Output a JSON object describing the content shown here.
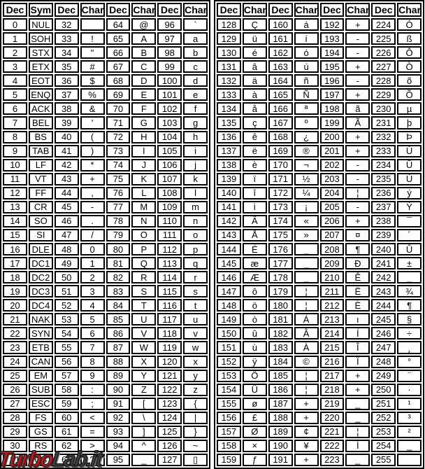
{
  "page": {
    "background": "#ffffff",
    "border_color": "#000000",
    "text_color": "#000000"
  },
  "watermark": {
    "text_turbo": "Turbo",
    "text_lab": "Lab.it",
    "color_turbo": "#c3181a",
    "color_lab": "#3c3c3c"
  },
  "ascii_table": {
    "tables": [
      {
        "name": "ascii-standard-0-127",
        "headers": [
          "Dec",
          "Sym",
          "Dec",
          "Char",
          "Dec",
          "Char",
          "Dec",
          "Char"
        ],
        "rows": [
          [
            "0",
            "NUL",
            "32",
            " ",
            "64",
            "@",
            "96",
            "`"
          ],
          [
            "1",
            "SOH",
            "33",
            "!",
            "65",
            "A",
            "97",
            "a"
          ],
          [
            "2",
            "STX",
            "34",
            "\"",
            "66",
            "B",
            "98",
            "b"
          ],
          [
            "3",
            "ETX",
            "35",
            "#",
            "67",
            "C",
            "99",
            "c"
          ],
          [
            "4",
            "EOT",
            "36",
            "$",
            "68",
            "D",
            "100",
            "d"
          ],
          [
            "5",
            "ENQ",
            "37",
            "%",
            "69",
            "E",
            "101",
            "e"
          ],
          [
            "6",
            "ACK",
            "38",
            "&",
            "70",
            "F",
            "102",
            "f"
          ],
          [
            "7",
            "BEL",
            "39",
            "'",
            "71",
            "G",
            "103",
            "g"
          ],
          [
            "8",
            "BS",
            "40",
            "(",
            "72",
            "H",
            "104",
            "h"
          ],
          [
            "9",
            "TAB",
            "41",
            ")",
            "73",
            "I",
            "105",
            "i"
          ],
          [
            "10",
            "LF",
            "42",
            "*",
            "74",
            "J",
            "106",
            "j"
          ],
          [
            "11",
            "VT",
            "43",
            "+",
            "75",
            "K",
            "107",
            "k"
          ],
          [
            "12",
            "FF",
            "44",
            ",",
            "76",
            "L",
            "108",
            "l"
          ],
          [
            "13",
            "CR",
            "45",
            "-",
            "77",
            "M",
            "109",
            "m"
          ],
          [
            "14",
            "SO",
            "46",
            ".",
            "78",
            "N",
            "110",
            "n"
          ],
          [
            "15",
            "SI",
            "47",
            "/",
            "79",
            "O",
            "111",
            "o"
          ],
          [
            "16",
            "DLE",
            "48",
            "0",
            "80",
            "P",
            "112",
            "p"
          ],
          [
            "17",
            "DC1",
            "49",
            "1",
            "81",
            "Q",
            "113",
            "q"
          ],
          [
            "18",
            "DC2",
            "50",
            "2",
            "82",
            "R",
            "114",
            "r"
          ],
          [
            "19",
            "DC3",
            "51",
            "3",
            "83",
            "S",
            "115",
            "s"
          ],
          [
            "20",
            "DC4",
            "52",
            "4",
            "84",
            "T",
            "116",
            "t"
          ],
          [
            "21",
            "NAK",
            "53",
            "5",
            "85",
            "U",
            "117",
            "u"
          ],
          [
            "22",
            "SYN",
            "54",
            "6",
            "86",
            "V",
            "118",
            "v"
          ],
          [
            "23",
            "ETB",
            "55",
            "7",
            "87",
            "W",
            "119",
            "w"
          ],
          [
            "24",
            "CAN",
            "56",
            "8",
            "88",
            "X",
            "120",
            "x"
          ],
          [
            "25",
            "EM",
            "57",
            "9",
            "89",
            "Y",
            "121",
            "y"
          ],
          [
            "26",
            "SUB",
            "58",
            ":",
            "90",
            "Z",
            "122",
            "z"
          ],
          [
            "27",
            "ESC",
            "59",
            ";",
            "91",
            "[",
            "123",
            "{"
          ],
          [
            "28",
            "FS",
            "60",
            "<",
            "92",
            "\\",
            "124",
            "|"
          ],
          [
            "29",
            "GS",
            "61",
            "=",
            "93",
            "]",
            "125",
            "}"
          ],
          [
            "30",
            "RS",
            "62",
            ">",
            "94",
            "^",
            "126",
            "~"
          ],
          [
            "31",
            "US",
            "63",
            "?",
            "95",
            "_",
            "127",
            "▯"
          ]
        ]
      },
      {
        "name": "ascii-extended-128-255",
        "headers": [
          "Dec",
          "Char",
          "Dec",
          "Char",
          "Dec",
          "Char",
          "Dec",
          "Char"
        ],
        "rows": [
          [
            "128",
            "Ç",
            "160",
            "á",
            "192",
            "+",
            "224",
            "Ó"
          ],
          [
            "129",
            "ü",
            "161",
            "í",
            "193",
            "-",
            "225",
            "ß"
          ],
          [
            "130",
            "é",
            "162",
            "ó",
            "194",
            "-",
            "226",
            "Ô"
          ],
          [
            "131",
            "â",
            "163",
            "ú",
            "195",
            "+",
            "227",
            "Ò"
          ],
          [
            "132",
            "ä",
            "164",
            "ñ",
            "196",
            "-",
            "228",
            "õ"
          ],
          [
            "133",
            "à",
            "165",
            "Ñ",
            "197",
            "+",
            "229",
            "Õ"
          ],
          [
            "134",
            "å",
            "166",
            "ª",
            "198",
            "ã",
            "230",
            "µ"
          ],
          [
            "135",
            "ç",
            "167",
            "º",
            "199",
            "Ã",
            "231",
            "þ"
          ],
          [
            "136",
            "ê",
            "168",
            "¿",
            "200",
            "+",
            "232",
            "Þ"
          ],
          [
            "137",
            "ë",
            "169",
            "®",
            "201",
            "+",
            "233",
            "Ú"
          ],
          [
            "138",
            "è",
            "170",
            "¬",
            "202",
            "-",
            "234",
            "Û"
          ],
          [
            "139",
            "ï",
            "171",
            "½",
            "203",
            "-",
            "235",
            "Ù"
          ],
          [
            "140",
            "î",
            "172",
            "¼",
            "204",
            "¦",
            "236",
            "ý"
          ],
          [
            "141",
            "ì",
            "173",
            "¡",
            "205",
            "-",
            "237",
            "Ý"
          ],
          [
            "142",
            "Ä",
            "174",
            "«",
            "206",
            "+",
            "238",
            "¯"
          ],
          [
            "143",
            "Å",
            "175",
            "»",
            "207",
            "¤",
            "239",
            "´"
          ],
          [
            "144",
            "É",
            "176",
            "_",
            "208",
            "¶",
            "240",
            "Û"
          ],
          [
            "145",
            "æ",
            "177",
            "_",
            "209",
            "Ð",
            "241",
            "±"
          ],
          [
            "146",
            "Æ",
            "178",
            "_",
            "210",
            "Ê",
            "242",
            "_"
          ],
          [
            "147",
            "ô",
            "179",
            "¦",
            "211",
            "Ë",
            "243",
            "¾"
          ],
          [
            "148",
            "ö",
            "180",
            "¦",
            "212",
            "È",
            "244",
            "¶"
          ],
          [
            "149",
            "ò",
            "181",
            "Á",
            "213",
            "ı",
            "245",
            "§"
          ],
          [
            "150",
            "û",
            "182",
            "Â",
            "214",
            "Í",
            "246",
            "÷"
          ],
          [
            "151",
            "ù",
            "183",
            "À",
            "215",
            "Î",
            "247",
            "¸"
          ],
          [
            "152",
            "ÿ",
            "184",
            "©",
            "216",
            "Ï",
            "248",
            "°"
          ],
          [
            "153",
            "Ö",
            "185",
            "¦",
            "217",
            "+",
            "249",
            "¨"
          ],
          [
            "154",
            "Ü",
            "186",
            "¦",
            "218",
            "+",
            "250",
            "·"
          ],
          [
            "155",
            "ø",
            "187",
            "+",
            "219",
            "_",
            "251",
            "¹"
          ],
          [
            "156",
            "£",
            "188",
            "+",
            "220",
            "_",
            "252",
            "³"
          ],
          [
            "157",
            "Ø",
            "189",
            "¢",
            "221",
            "¦",
            "253",
            "²"
          ],
          [
            "158",
            "×",
            "190",
            "¥",
            "222",
            "Ì",
            "254",
            "_"
          ],
          [
            "159",
            "ƒ",
            "191",
            "+",
            "223",
            "_",
            "255",
            ""
          ]
        ]
      }
    ]
  }
}
